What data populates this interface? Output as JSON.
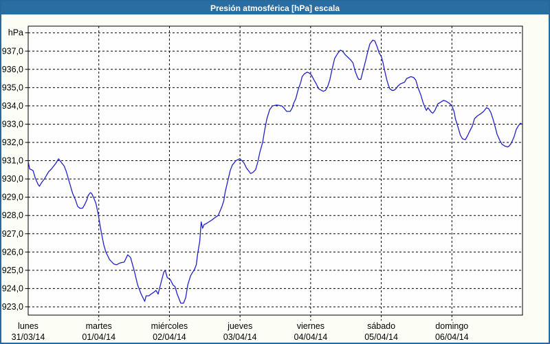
{
  "window": {
    "title": "Presión atmosférica [hPa] escala"
  },
  "colors": {
    "titlebar_bg": "#2a6da3",
    "titlebar_text": "#ffffff",
    "window_border": "#26699a",
    "window_bg": "#fcfef6",
    "plot_bg": "#fefefe",
    "grid": "#000000",
    "line": "#2020c8",
    "labels": "#000000"
  },
  "chart_data": {
    "type": "line",
    "title": "Presión atmosférica [hPa] escala",
    "ylabel": "hPa",
    "y_unit_label": "hPa",
    "grid": "dashed",
    "legend": "none",
    "decimal_separator": ",",
    "ylim": [
      922.5,
      938.4
    ],
    "y_axis_top": {
      "value": 938,
      "label": "hPa"
    },
    "y_ticks": [
      {
        "value": 937,
        "label": "937,0"
      },
      {
        "value": 936,
        "label": "936,0"
      },
      {
        "value": 935,
        "label": "935,0"
      },
      {
        "value": 934,
        "label": "934,0"
      },
      {
        "value": 933,
        "label": "933,0"
      },
      {
        "value": 932,
        "label": "932,0"
      },
      {
        "value": 931,
        "label": "931,0"
      },
      {
        "value": 930,
        "label": "930,0"
      },
      {
        "value": 929,
        "label": "929,0"
      },
      {
        "value": 928,
        "label": "928,0"
      },
      {
        "value": 927,
        "label": "927,0"
      },
      {
        "value": 926,
        "label": "926,0"
      },
      {
        "value": 925,
        "label": "925,0"
      },
      {
        "value": 924,
        "label": "924,0"
      },
      {
        "value": 923,
        "label": "923,0"
      }
    ],
    "x_axis": {
      "span_days": 7,
      "days": [
        {
          "name": "lunes",
          "date": "31/03/14"
        },
        {
          "name": "martes",
          "date": "01/04/14"
        },
        {
          "name": "miércoles",
          "date": "02/04/14"
        },
        {
          "name": "jueves",
          "date": "03/04/14"
        },
        {
          "name": "viernes",
          "date": "04/04/14"
        },
        {
          "name": "sábado",
          "date": "05/04/14"
        },
        {
          "name": "domingo",
          "date": "06/04/14"
        }
      ]
    },
    "series": [
      {
        "name": "Presión atmosférica",
        "color": "#2020c8",
        "points": [
          [
            0.0,
            930.95
          ],
          [
            0.02,
            930.55
          ],
          [
            0.05,
            930.5
          ],
          [
            0.07,
            930.45
          ],
          [
            0.1,
            930.05
          ],
          [
            0.14,
            929.7
          ],
          [
            0.16,
            929.6
          ],
          [
            0.19,
            929.8
          ],
          [
            0.23,
            930.0
          ],
          [
            0.26,
            930.2
          ],
          [
            0.29,
            930.4
          ],
          [
            0.33,
            930.55
          ],
          [
            0.36,
            930.7
          ],
          [
            0.39,
            930.85
          ],
          [
            0.43,
            931.1
          ],
          [
            0.44,
            931.05
          ],
          [
            0.48,
            930.85
          ],
          [
            0.51,
            930.7
          ],
          [
            0.54,
            930.4
          ],
          [
            0.57,
            930.0
          ],
          [
            0.6,
            929.6
          ],
          [
            0.63,
            929.2
          ],
          [
            0.67,
            928.85
          ],
          [
            0.7,
            928.5
          ],
          [
            0.73,
            928.4
          ],
          [
            0.77,
            928.4
          ],
          [
            0.8,
            928.6
          ],
          [
            0.83,
            928.85
          ],
          [
            0.85,
            929.1
          ],
          [
            0.88,
            929.25
          ],
          [
            0.9,
            929.2
          ],
          [
            0.93,
            928.95
          ],
          [
            0.96,
            928.65
          ],
          [
            0.99,
            928.1
          ],
          [
            1.02,
            927.4
          ],
          [
            1.04,
            927.0
          ],
          [
            1.07,
            926.4
          ],
          [
            1.1,
            926.0
          ],
          [
            1.15,
            925.6
          ],
          [
            1.21,
            925.35
          ],
          [
            1.25,
            925.3
          ],
          [
            1.3,
            925.4
          ],
          [
            1.36,
            925.45
          ],
          [
            1.41,
            925.85
          ],
          [
            1.45,
            925.7
          ],
          [
            1.5,
            925.0
          ],
          [
            1.55,
            924.2
          ],
          [
            1.6,
            923.7
          ],
          [
            1.65,
            923.3
          ],
          [
            1.67,
            923.6
          ],
          [
            1.71,
            923.6
          ],
          [
            1.74,
            923.7
          ],
          [
            1.78,
            923.8
          ],
          [
            1.81,
            923.9
          ],
          [
            1.84,
            923.7
          ],
          [
            1.86,
            924.0
          ],
          [
            1.92,
            924.9
          ],
          [
            1.94,
            925.0
          ],
          [
            1.97,
            924.6
          ],
          [
            2.01,
            924.5
          ],
          [
            2.05,
            924.2
          ],
          [
            2.08,
            924.1
          ],
          [
            2.11,
            923.7
          ],
          [
            2.16,
            923.2
          ],
          [
            2.2,
            923.2
          ],
          [
            2.23,
            923.5
          ],
          [
            2.26,
            924.2
          ],
          [
            2.3,
            924.7
          ],
          [
            2.33,
            924.9
          ],
          [
            2.35,
            925.0
          ],
          [
            2.38,
            925.3
          ],
          [
            2.4,
            925.9
          ],
          [
            2.43,
            926.6
          ],
          [
            2.45,
            927.65
          ],
          [
            2.47,
            927.3
          ],
          [
            2.49,
            927.5
          ],
          [
            2.52,
            927.55
          ],
          [
            2.56,
            927.65
          ],
          [
            2.6,
            927.75
          ],
          [
            2.65,
            927.9
          ],
          [
            2.69,
            928.0
          ],
          [
            2.74,
            928.45
          ],
          [
            2.77,
            928.8
          ],
          [
            2.79,
            929.3
          ],
          [
            2.83,
            929.95
          ],
          [
            2.86,
            930.45
          ],
          [
            2.89,
            930.75
          ],
          [
            2.94,
            931.0
          ],
          [
            2.99,
            931.1
          ],
          [
            3.03,
            931.0
          ],
          [
            3.06,
            930.85
          ],
          [
            3.09,
            930.6
          ],
          [
            3.13,
            930.4
          ],
          [
            3.15,
            930.3
          ],
          [
            3.18,
            930.35
          ],
          [
            3.22,
            930.5
          ],
          [
            3.25,
            930.9
          ],
          [
            3.28,
            931.45
          ],
          [
            3.32,
            932.0
          ],
          [
            3.35,
            932.7
          ],
          [
            3.38,
            933.3
          ],
          [
            3.42,
            933.8
          ],
          [
            3.46,
            934.0
          ],
          [
            3.52,
            934.05
          ],
          [
            3.59,
            934.0
          ],
          [
            3.62,
            933.9
          ],
          [
            3.66,
            933.7
          ],
          [
            3.71,
            933.7
          ],
          [
            3.74,
            933.9
          ],
          [
            3.76,
            934.15
          ],
          [
            3.79,
            934.4
          ],
          [
            3.82,
            934.85
          ],
          [
            3.86,
            935.3
          ],
          [
            3.88,
            935.6
          ],
          [
            3.91,
            935.75
          ],
          [
            3.95,
            935.85
          ],
          [
            3.98,
            935.8
          ],
          [
            4.01,
            935.7
          ],
          [
            4.05,
            935.4
          ],
          [
            4.08,
            935.2
          ],
          [
            4.11,
            934.95
          ],
          [
            4.15,
            934.85
          ],
          [
            4.18,
            934.8
          ],
          [
            4.21,
            934.85
          ],
          [
            4.24,
            935.05
          ],
          [
            4.27,
            935.4
          ],
          [
            4.3,
            935.95
          ],
          [
            4.34,
            936.6
          ],
          [
            4.38,
            936.85
          ],
          [
            4.42,
            937.05
          ],
          [
            4.45,
            937.0
          ],
          [
            4.49,
            936.8
          ],
          [
            4.53,
            936.65
          ],
          [
            4.57,
            936.5
          ],
          [
            4.6,
            936.35
          ],
          [
            4.63,
            935.9
          ],
          [
            4.66,
            935.6
          ],
          [
            4.68,
            935.45
          ],
          [
            4.71,
            935.45
          ],
          [
            4.74,
            935.9
          ],
          [
            4.78,
            936.5
          ],
          [
            4.81,
            937.0
          ],
          [
            4.84,
            937.4
          ],
          [
            4.88,
            937.6
          ],
          [
            4.91,
            937.55
          ],
          [
            4.94,
            937.25
          ],
          [
            4.97,
            936.9
          ],
          [
            5.0,
            936.7
          ],
          [
            5.02,
            936.45
          ],
          [
            5.05,
            935.9
          ],
          [
            5.08,
            935.4
          ],
          [
            5.1,
            935.15
          ],
          [
            5.12,
            934.95
          ],
          [
            5.15,
            934.85
          ],
          [
            5.18,
            934.85
          ],
          [
            5.21,
            934.95
          ],
          [
            5.24,
            935.1
          ],
          [
            5.27,
            935.2
          ],
          [
            5.3,
            935.25
          ],
          [
            5.33,
            935.3
          ],
          [
            5.36,
            935.5
          ],
          [
            5.42,
            935.6
          ],
          [
            5.46,
            935.55
          ],
          [
            5.49,
            935.4
          ],
          [
            5.52,
            935.0
          ],
          [
            5.56,
            934.6
          ],
          [
            5.59,
            934.2
          ],
          [
            5.62,
            933.9
          ],
          [
            5.64,
            933.75
          ],
          [
            5.66,
            933.9
          ],
          [
            5.68,
            933.8
          ],
          [
            5.71,
            933.65
          ],
          [
            5.73,
            933.6
          ],
          [
            5.76,
            933.75
          ],
          [
            5.8,
            934.1
          ],
          [
            5.84,
            934.2
          ],
          [
            5.88,
            934.3
          ],
          [
            5.92,
            934.25
          ],
          [
            5.96,
            934.15
          ],
          [
            6.0,
            934.0
          ],
          [
            6.03,
            933.7
          ],
          [
            6.05,
            933.3
          ],
          [
            6.09,
            932.8
          ],
          [
            6.12,
            932.4
          ],
          [
            6.15,
            932.2
          ],
          [
            6.19,
            932.15
          ],
          [
            6.22,
            932.35
          ],
          [
            6.25,
            932.6
          ],
          [
            6.29,
            932.9
          ],
          [
            6.32,
            933.3
          ],
          [
            6.36,
            933.45
          ],
          [
            6.4,
            933.55
          ],
          [
            6.42,
            933.6
          ],
          [
            6.45,
            933.7
          ],
          [
            6.49,
            933.9
          ],
          [
            6.52,
            933.85
          ],
          [
            6.55,
            933.65
          ],
          [
            6.58,
            933.3
          ],
          [
            6.61,
            932.9
          ],
          [
            6.64,
            932.45
          ],
          [
            6.68,
            932.1
          ],
          [
            6.71,
            931.9
          ],
          [
            6.75,
            931.8
          ],
          [
            6.79,
            931.75
          ],
          [
            6.81,
            931.8
          ],
          [
            6.84,
            931.95
          ],
          [
            6.88,
            932.3
          ],
          [
            6.91,
            932.7
          ],
          [
            6.94,
            932.9
          ],
          [
            6.97,
            933.05
          ],
          [
            6.99,
            933.0
          ]
        ]
      }
    ]
  }
}
